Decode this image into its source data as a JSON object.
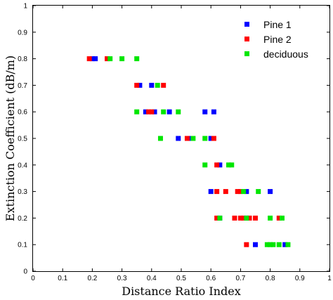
{
  "chart_data": {
    "type": "scatter",
    "xlabel": "Distance Ratio Index",
    "ylabel": "Extinction Coefficient (dB/m)",
    "xlim": [
      0,
      1
    ],
    "ylim": [
      0,
      1
    ],
    "xticks": [
      "0",
      "0.1",
      "0.2",
      "0.3",
      "0.4",
      "0.5",
      "0.6",
      "0.7",
      "0.8",
      "0.9",
      "1"
    ],
    "yticks": [
      "0",
      "0.1",
      "0.2",
      "0.3",
      "0.4",
      "0.5",
      "0.6",
      "0.7",
      "0.8",
      "0.9",
      "1"
    ],
    "grid": false,
    "legend_position": "top-right",
    "series": [
      {
        "name": "Pine 1",
        "color": "#0000ff",
        "points": [
          [
            0.2,
            0.8
          ],
          [
            0.21,
            0.8
          ],
          [
            0.36,
            0.7
          ],
          [
            0.4,
            0.7
          ],
          [
            0.38,
            0.6
          ],
          [
            0.41,
            0.6
          ],
          [
            0.46,
            0.6
          ],
          [
            0.58,
            0.6
          ],
          [
            0.61,
            0.6
          ],
          [
            0.49,
            0.5
          ],
          [
            0.53,
            0.5
          ],
          [
            0.6,
            0.5
          ],
          [
            0.63,
            0.4
          ],
          [
            0.6,
            0.3
          ],
          [
            0.72,
            0.3
          ],
          [
            0.8,
            0.3
          ],
          [
            0.63,
            0.2
          ],
          [
            0.72,
            0.2
          ],
          [
            0.75,
            0.1
          ],
          [
            0.85,
            0.1
          ]
        ]
      },
      {
        "name": "Pine 2",
        "color": "#ff0000",
        "points": [
          [
            0.19,
            0.8
          ],
          [
            0.25,
            0.8
          ],
          [
            0.35,
            0.7
          ],
          [
            0.44,
            0.7
          ],
          [
            0.39,
            0.6
          ],
          [
            0.4,
            0.6
          ],
          [
            0.52,
            0.5
          ],
          [
            0.61,
            0.5
          ],
          [
            0.62,
            0.4
          ],
          [
            0.62,
            0.3
          ],
          [
            0.65,
            0.3
          ],
          [
            0.69,
            0.3
          ],
          [
            0.7,
            0.3
          ],
          [
            0.62,
            0.2
          ],
          [
            0.68,
            0.2
          ],
          [
            0.7,
            0.2
          ],
          [
            0.71,
            0.2
          ],
          [
            0.73,
            0.2
          ],
          [
            0.75,
            0.2
          ],
          [
            0.83,
            0.2
          ],
          [
            0.72,
            0.1
          ]
        ]
      },
      {
        "name": "deciduous",
        "color": "#00e600",
        "points": [
          [
            0.26,
            0.8
          ],
          [
            0.3,
            0.8
          ],
          [
            0.35,
            0.8
          ],
          [
            0.42,
            0.7
          ],
          [
            0.35,
            0.6
          ],
          [
            0.44,
            0.6
          ],
          [
            0.49,
            0.6
          ],
          [
            0.43,
            0.5
          ],
          [
            0.54,
            0.5
          ],
          [
            0.58,
            0.5
          ],
          [
            0.58,
            0.4
          ],
          [
            0.66,
            0.4
          ],
          [
            0.67,
            0.4
          ],
          [
            0.71,
            0.3
          ],
          [
            0.76,
            0.3
          ],
          [
            0.63,
            0.2
          ],
          [
            0.72,
            0.2
          ],
          [
            0.8,
            0.2
          ],
          [
            0.84,
            0.2
          ],
          [
            0.79,
            0.1
          ],
          [
            0.8,
            0.1
          ],
          [
            0.81,
            0.1
          ],
          [
            0.83,
            0.1
          ],
          [
            0.86,
            0.1
          ]
        ]
      }
    ]
  }
}
